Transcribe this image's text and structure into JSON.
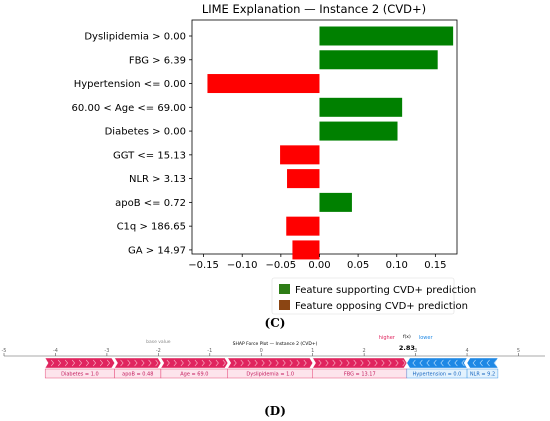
{
  "chart_data": [
    {
      "type": "bar",
      "orientation": "horizontal",
      "title": "LIME Explanation — Instance 2 (CVD+)",
      "categories": [
        "Dyslipidemia > 0.00",
        "FBG > 6.39",
        "Hypertension <= 0.00",
        "60.00 < Age <= 69.00",
        "Diabetes > 0.00",
        "GGT <= 15.13",
        "NLR > 3.13",
        "apoB <= 0.72",
        "C1q > 186.65",
        "GA > 14.97"
      ],
      "values": [
        0.173,
        0.153,
        -0.145,
        0.107,
        0.101,
        -0.051,
        -0.042,
        0.042,
        -0.043,
        -0.035
      ],
      "xlim": [
        -0.165,
        0.178
      ],
      "xticks": [
        "−0.15",
        "−0.10",
        "−0.05",
        "0.00",
        "0.05",
        "0.10",
        "0.15"
      ],
      "xtick_values": [
        -0.15,
        -0.1,
        -0.05,
        0.0,
        0.05,
        0.1,
        0.15
      ],
      "colors": {
        "positive": "#008000",
        "negative": "#ff0000"
      },
      "legend": {
        "placement": "bottom-right",
        "entries": [
          {
            "label": "Feature supporting CVD+ prediction",
            "color": "#2e7d16"
          },
          {
            "label": "Feature opposing CVD+ prediction",
            "color": "#8b4513"
          }
        ]
      },
      "panel_label": "(C)"
    },
    {
      "type": "bar",
      "subtype": "shap-force-plot",
      "title": "SHAP Force Plot — Instance 2 (CVD+)",
      "axis_ticks": [
        "-5",
        "-4",
        "-3",
        "-2",
        "-1",
        "0",
        "1",
        "2",
        "3",
        "4",
        "5"
      ],
      "axis_tick_values": [
        -5,
        -4,
        -3,
        -2,
        -1,
        0,
        1,
        2,
        3,
        4,
        5
      ],
      "base_value_label": "base value",
      "base_value": -2.0,
      "higher_label": "higher",
      "lower_label": "lower",
      "fx_label": "f(x)",
      "fx_value": "2.83",
      "fx_numeric": 2.83,
      "positive_features": [
        {
          "label": "Diabetes = 1.0",
          "from": -4.2,
          "to": -2.85
        },
        {
          "label": "apoB = 0.48",
          "from": -2.85,
          "to": -1.95
        },
        {
          "label": "Age = 69.0",
          "from": -1.95,
          "to": -0.65
        },
        {
          "label": "Dyslipidemia = 1.0",
          "from": -0.65,
          "to": 1.0
        },
        {
          "label": "FBG = 13.17",
          "from": 1.0,
          "to": 2.83
        }
      ],
      "negative_features": [
        {
          "label": "Hypertension = 0.0",
          "from": 2.83,
          "to": 4.0
        },
        {
          "label": "NLR = 9.2",
          "from": 4.0,
          "to": 4.6
        }
      ],
      "colors": {
        "positive": "#e0245e",
        "negative": "#1e88e5"
      },
      "panel_label": "(D)"
    }
  ]
}
